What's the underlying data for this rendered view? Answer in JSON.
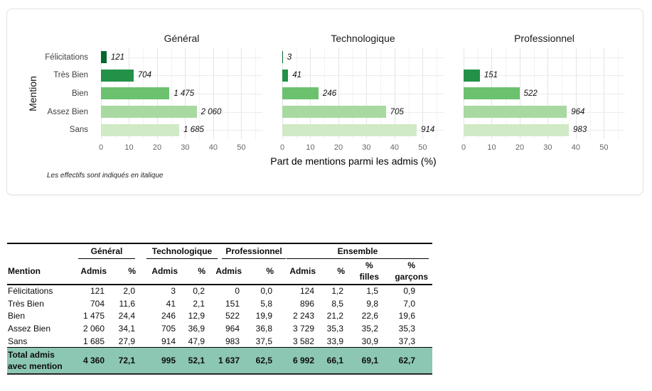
{
  "chart_data": {
    "type": "bar",
    "orientation": "horizontal",
    "facets": [
      "Général",
      "Technologique",
      "Professionnel"
    ],
    "categories": [
      "Félicitations",
      "Très Bien",
      "Bien",
      "Assez Bien",
      "Sans"
    ],
    "series": [
      {
        "name": "Général",
        "pct": [
          2.0,
          11.6,
          24.4,
          34.1,
          27.9
        ],
        "counts": [
          121,
          704,
          1475,
          2060,
          1685
        ],
        "count_labels": [
          "121",
          "704",
          "1 475",
          "2 060",
          "1 685"
        ]
      },
      {
        "name": "Technologique",
        "pct": [
          0.2,
          2.1,
          12.9,
          36.9,
          47.9
        ],
        "counts": [
          3,
          41,
          246,
          705,
          914
        ],
        "count_labels": [
          "3",
          "41",
          "246",
          "705",
          "914"
        ]
      },
      {
        "name": "Professionnel",
        "pct": [
          0.0,
          5.8,
          19.9,
          36.8,
          37.5
        ],
        "counts": [
          0,
          151,
          522,
          964,
          983
        ],
        "count_labels": [
          "",
          "151",
          "522",
          "964",
          "983"
        ]
      }
    ],
    "bar_colors": [
      "#07672e",
      "#239148",
      "#6cc16f",
      "#a7d9a0",
      "#d0eac6"
    ],
    "xlabel": "Part de mentions parmi les admis (%)",
    "ylabel": "Mention",
    "xticks": [
      0,
      10,
      20,
      30,
      40,
      50
    ],
    "xticks_minor": [
      5,
      15,
      25,
      35,
      45,
      55
    ],
    "xlim": [
      0,
      57.5
    ],
    "caption": "Les effectifs sont indiqués en italique"
  },
  "table": {
    "col_groups": [
      {
        "label": "Général",
        "span": 2,
        "underline_w": 80,
        "shift": 4
      },
      {
        "label": "Technologique",
        "span": 2,
        "underline_w": 100,
        "shift": 14
      },
      {
        "label": "Professionnel",
        "span": 2,
        "underline_w": 90,
        "shift": 19
      },
      {
        "label": "Ensemble",
        "span": 4,
        "underline_w": 200,
        "shift": 6
      }
    ],
    "columns": [
      "Mention",
      "Admis",
      "%",
      "Admis",
      "%",
      "Admis",
      "%",
      "Admis",
      "%",
      "%\nfilles",
      "%\ngarçons"
    ],
    "rows": [
      [
        "Félicitations",
        "121",
        "2,0",
        "3",
        "0,2",
        "0",
        "0,0",
        "124",
        "1,2",
        "1,5",
        "0,9"
      ],
      [
        "Très Bien",
        "704",
        "11,6",
        "41",
        "2,1",
        "151",
        "5,8",
        "896",
        "8,5",
        "9,8",
        "7,0"
      ],
      [
        "Bien",
        "1 475",
        "24,4",
        "246",
        "12,9",
        "522",
        "19,9",
        "2 243",
        "21,2",
        "22,6",
        "19,6"
      ],
      [
        "Assez Bien",
        "2 060",
        "34,1",
        "705",
        "36,9",
        "964",
        "36,8",
        "3 729",
        "35,3",
        "35,2",
        "35,3"
      ],
      [
        "Sans",
        "1 685",
        "27,9",
        "914",
        "47,9",
        "983",
        "37,5",
        "3 582",
        "33,9",
        "30,9",
        "37,3"
      ]
    ],
    "total_row": [
      "Total admis avec mention",
      "4 360",
      "72,1",
      "995",
      "52,1",
      "1 637",
      "62,5",
      "6 992",
      "66,1",
      "69,1",
      "62,7"
    ],
    "total_row_bg": "#8cc7b3"
  }
}
